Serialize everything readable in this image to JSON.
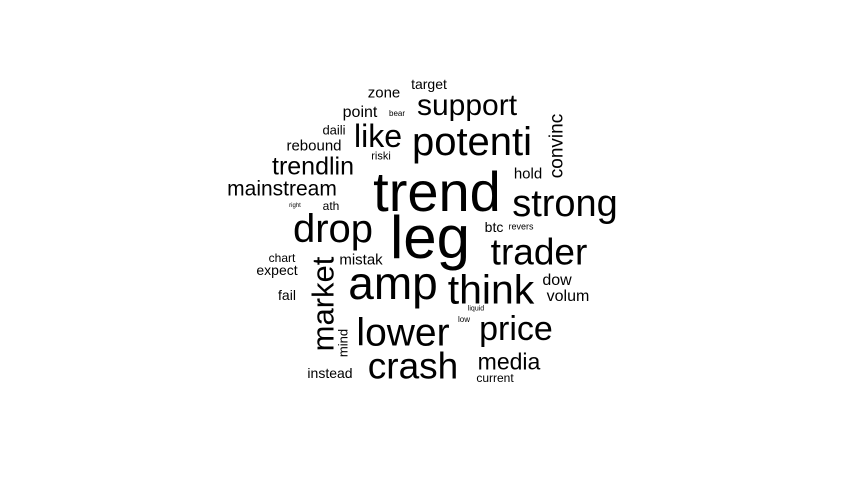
{
  "words": [
    {
      "text": "trend",
      "color": "#000000"
    },
    {
      "text": "leg",
      "color": "#000000"
    },
    {
      "text": "amp",
      "color": "#000000"
    },
    {
      "text": "potenti",
      "color": "#000000"
    },
    {
      "text": "drop",
      "color": "#000000"
    },
    {
      "text": "strong",
      "color": "#000000"
    },
    {
      "text": "trader",
      "color": "#000000"
    },
    {
      "text": "think",
      "color": "#000000"
    },
    {
      "text": "lower",
      "color": "#000000"
    },
    {
      "text": "crash",
      "color": "#000000"
    },
    {
      "text": "price",
      "color": "#000000"
    },
    {
      "text": "support",
      "color": "#000000"
    },
    {
      "text": "market",
      "color": "#000000"
    },
    {
      "text": "like",
      "color": "#000000"
    },
    {
      "text": "trendlin",
      "color": "#000000"
    },
    {
      "text": "mainstream",
      "color": "#000000"
    },
    {
      "text": "media",
      "color": "#000000"
    },
    {
      "text": "convinc",
      "color": "#000000"
    },
    {
      "text": "zone",
      "color": "#000000"
    },
    {
      "text": "point",
      "color": "#000000"
    },
    {
      "text": "target",
      "color": "#000000"
    },
    {
      "text": "rebound",
      "color": "#000000"
    },
    {
      "text": "daili",
      "color": "#000000"
    },
    {
      "text": "hold",
      "color": "#000000"
    },
    {
      "text": "mistak",
      "color": "#000000"
    },
    {
      "text": "dow",
      "color": "#000000"
    },
    {
      "text": "volum",
      "color": "#000000"
    },
    {
      "text": "btc",
      "color": "#000000"
    },
    {
      "text": "expect",
      "color": "#000000"
    },
    {
      "text": "chart",
      "color": "#000000"
    },
    {
      "text": "fail",
      "color": "#000000"
    },
    {
      "text": "instead",
      "color": "#000000"
    },
    {
      "text": "current",
      "color": "#000000"
    },
    {
      "text": "mind",
      "color": "#000000"
    },
    {
      "text": "ath",
      "color": "#000000"
    },
    {
      "text": "riski",
      "color": "#000000"
    },
    {
      "text": "revers",
      "color": "#000000"
    },
    {
      "text": "bear",
      "color": "#000000"
    },
    {
      "text": "right",
      "color": "#000000"
    },
    {
      "text": "liquid",
      "color": "#000000"
    },
    {
      "text": "low",
      "color": "#000000"
    }
  ]
}
